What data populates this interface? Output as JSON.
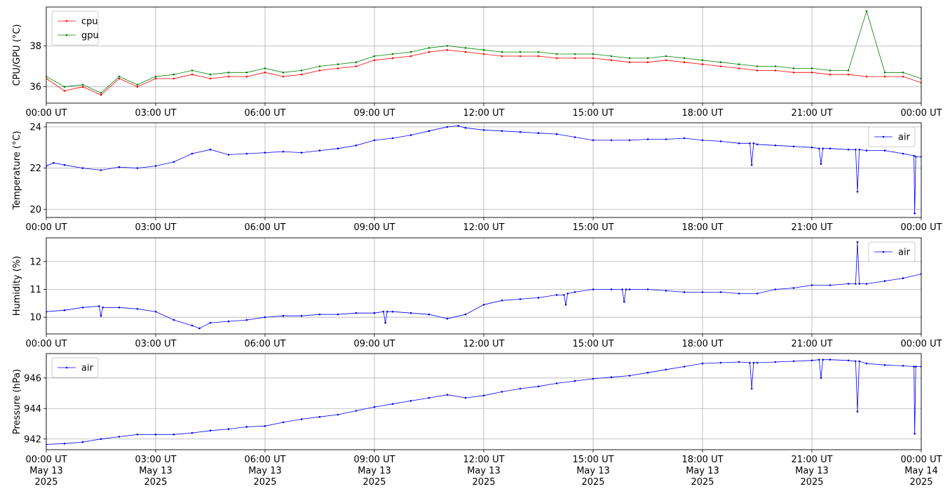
{
  "chart_data": [
    {
      "type": "line",
      "ylabel": "CPU/GPU (°C)",
      "ylim": [
        35.2,
        39.9
      ],
      "yticks": [
        36,
        38
      ],
      "xlim": [
        0,
        24
      ],
      "xtick_labels": [
        "00:00 UT",
        "03:00 UT",
        "06:00 UT",
        "09:00 UT",
        "12:00 UT",
        "15:00 UT",
        "18:00 UT",
        "21:00 UT",
        "00:00 UT"
      ],
      "grid": true,
      "legend": "upper-left",
      "series": [
        {
          "name": "cpu",
          "color": "#ff0000",
          "x": [
            0,
            0.5,
            1,
            1.5,
            2,
            2.5,
            3,
            3.5,
            4,
            4.5,
            5,
            5.5,
            6,
            6.5,
            7,
            7.5,
            8,
            8.5,
            9,
            9.5,
            10,
            10.5,
            11,
            11.5,
            12,
            12.5,
            13,
            13.5,
            14,
            14.5,
            15,
            15.5,
            16,
            16.5,
            17,
            17.5,
            18,
            18.5,
            19,
            19.5,
            20,
            20.5,
            21,
            21.5,
            22,
            22.5,
            23,
            23.5,
            24
          ],
          "y": [
            36.4,
            35.8,
            36.0,
            35.6,
            36.4,
            36.0,
            36.4,
            36.4,
            36.6,
            36.4,
            36.5,
            36.5,
            36.7,
            36.5,
            36.6,
            36.8,
            36.9,
            37.0,
            37.3,
            37.4,
            37.5,
            37.7,
            37.8,
            37.7,
            37.6,
            37.5,
            37.5,
            37.5,
            37.4,
            37.4,
            37.4,
            37.3,
            37.2,
            37.2,
            37.3,
            37.2,
            37.1,
            37.0,
            36.9,
            36.8,
            36.8,
            36.7,
            36.7,
            36.6,
            36.6,
            36.5,
            36.5,
            36.5,
            36.2
          ]
        },
        {
          "name": "gpu",
          "color": "#008000",
          "x": [
            0,
            0.5,
            1,
            1.5,
            2,
            2.5,
            3,
            3.5,
            4,
            4.5,
            5,
            5.5,
            6,
            6.5,
            7,
            7.5,
            8,
            8.5,
            9,
            9.5,
            10,
            10.5,
            11,
            11.5,
            12,
            12.5,
            13,
            13.5,
            14,
            14.5,
            15,
            15.5,
            16,
            16.5,
            17,
            17.5,
            18,
            18.5,
            19,
            19.5,
            20,
            20.5,
            21,
            21.5,
            22,
            22.5,
            23,
            23.5,
            24
          ],
          "y": [
            36.5,
            36.0,
            36.1,
            35.7,
            36.5,
            36.1,
            36.5,
            36.6,
            36.8,
            36.6,
            36.7,
            36.7,
            36.9,
            36.7,
            36.8,
            37.0,
            37.1,
            37.2,
            37.5,
            37.6,
            37.7,
            37.9,
            38.0,
            37.9,
            37.8,
            37.7,
            37.7,
            37.7,
            37.6,
            37.6,
            37.6,
            37.5,
            37.4,
            37.4,
            37.5,
            37.4,
            37.3,
            37.2,
            37.1,
            37.0,
            37.0,
            36.9,
            36.9,
            36.8,
            36.8,
            39.7,
            36.7,
            36.7,
            36.4
          ]
        }
      ]
    },
    {
      "type": "line",
      "ylabel": "Temperature (°C)",
      "ylim": [
        19.6,
        24.2
      ],
      "yticks": [
        20,
        22,
        24
      ],
      "xlim": [
        0,
        24
      ],
      "xtick_labels": [
        "00:00 UT",
        "03:00 UT",
        "06:00 UT",
        "09:00 UT",
        "12:00 UT",
        "15:00 UT",
        "18:00 UT",
        "21:00 UT",
        "00:00 UT"
      ],
      "grid": true,
      "legend": "upper-right",
      "series": [
        {
          "name": "air",
          "color": "#0000ff",
          "x": [
            0,
            0.2,
            0.5,
            1,
            1.5,
            2,
            2.5,
            3,
            3.5,
            4,
            4.5,
            5,
            5.5,
            6,
            6.5,
            7,
            7.5,
            8,
            8.5,
            9,
            9.5,
            10,
            10.5,
            11,
            11.3,
            11.5,
            12,
            12.5,
            13,
            13.5,
            14,
            14.5,
            15,
            15.5,
            16,
            16.5,
            17,
            17.5,
            18,
            18.5,
            19,
            19.3,
            19.35,
            19.4,
            19.5,
            20,
            20.5,
            21,
            21.2,
            21.25,
            21.3,
            21.5,
            22,
            22.2,
            22.25,
            22.3,
            22.5,
            23,
            23.5,
            23.8,
            23.82,
            23.85,
            24
          ],
          "y": [
            22.1,
            22.25,
            22.15,
            22.0,
            21.9,
            22.05,
            22.0,
            22.1,
            22.3,
            22.7,
            22.9,
            22.65,
            22.7,
            22.75,
            22.8,
            22.75,
            22.85,
            22.95,
            23.1,
            23.35,
            23.45,
            23.6,
            23.8,
            24.0,
            24.05,
            23.95,
            23.85,
            23.8,
            23.75,
            23.7,
            23.65,
            23.5,
            23.35,
            23.35,
            23.35,
            23.4,
            23.4,
            23.45,
            23.35,
            23.3,
            23.2,
            23.2,
            22.15,
            23.2,
            23.15,
            23.1,
            23.05,
            23.0,
            22.95,
            22.2,
            22.95,
            22.95,
            22.9,
            22.9,
            20.85,
            22.9,
            22.85,
            22.85,
            22.7,
            22.6,
            19.8,
            22.55,
            22.55
          ]
        }
      ]
    },
    {
      "type": "line",
      "ylabel": "Humidity (%)",
      "ylim": [
        9.4,
        12.85
      ],
      "yticks": [
        10,
        11,
        12
      ],
      "xlim": [
        0,
        24
      ],
      "xtick_labels": [
        "00:00 UT",
        "03:00 UT",
        "06:00 UT",
        "09:00 UT",
        "12:00 UT",
        "15:00 UT",
        "18:00 UT",
        "21:00 UT",
        "00:00 UT"
      ],
      "grid": true,
      "legend": "upper-right",
      "series": [
        {
          "name": "air",
          "color": "#0000ff",
          "x": [
            0,
            0.5,
            1,
            1.45,
            1.5,
            1.55,
            2,
            2.5,
            3,
            3.5,
            4,
            4.2,
            4.5,
            5,
            5.5,
            6,
            6.5,
            7,
            7.5,
            8,
            8.5,
            9,
            9.25,
            9.3,
            9.35,
            9.5,
            10,
            10.5,
            11,
            11.5,
            12,
            12.5,
            13,
            13.5,
            14,
            14.2,
            14.25,
            14.3,
            14.5,
            15,
            15.5,
            15.8,
            15.85,
            15.9,
            16,
            16.5,
            17,
            17.5,
            18,
            18.5,
            19,
            19.5,
            20,
            20.5,
            21,
            21.5,
            22,
            22.2,
            22.25,
            22.3,
            22.5,
            23,
            23.5,
            24
          ],
          "y": [
            10.2,
            10.25,
            10.35,
            10.4,
            10.05,
            10.35,
            10.35,
            10.3,
            10.2,
            9.9,
            9.7,
            9.6,
            9.8,
            9.85,
            9.9,
            10.0,
            10.05,
            10.05,
            10.1,
            10.1,
            10.15,
            10.15,
            10.2,
            9.8,
            10.2,
            10.2,
            10.15,
            10.1,
            9.95,
            10.1,
            10.45,
            10.6,
            10.65,
            10.7,
            10.8,
            10.8,
            10.45,
            10.85,
            10.9,
            11.0,
            11.0,
            11.0,
            10.55,
            11.0,
            11.0,
            11.0,
            10.95,
            10.9,
            10.9,
            10.9,
            10.85,
            10.85,
            11.0,
            11.05,
            11.15,
            11.15,
            11.2,
            11.2,
            12.7,
            11.2,
            11.2,
            11.3,
            11.4,
            11.55
          ]
        }
      ]
    },
    {
      "type": "line",
      "ylabel": "Pressure (hPa)",
      "ylim": [
        941.3,
        947.6
      ],
      "yticks": [
        942,
        944,
        946
      ],
      "xlim": [
        0,
        24
      ],
      "xtick_labels": [
        "00:00 UT\nMay 13\n2025",
        "03:00 UT\nMay 13\n2025",
        "06:00 UT\nMay 13\n2025",
        "09:00 UT\nMay 13\n2025",
        "12:00 UT\nMay 13\n2025",
        "15:00 UT\nMay 13\n2025",
        "18:00 UT\nMay 13\n2025",
        "21:00 UT\nMay 13\n2025",
        "00:00 UT\nMay 14\n2025"
      ],
      "grid": true,
      "legend": "upper-left",
      "series": [
        {
          "name": "air",
          "color": "#0000ff",
          "x": [
            0,
            0.5,
            1,
            1.5,
            2,
            2.5,
            3,
            3.5,
            4,
            4.5,
            5,
            5.5,
            6,
            6.5,
            7,
            7.5,
            8,
            8.5,
            9,
            9.5,
            10,
            10.5,
            11,
            11.5,
            12,
            12.5,
            13,
            13.5,
            14,
            14.5,
            15,
            15.5,
            16,
            16.5,
            17,
            17.5,
            18,
            18.5,
            19,
            19.3,
            19.35,
            19.4,
            19.5,
            20,
            20.5,
            21,
            21.2,
            21.25,
            21.3,
            21.5,
            22,
            22.2,
            22.25,
            22.3,
            22.5,
            23,
            23.5,
            23.8,
            23.82,
            23.85,
            24
          ],
          "y": [
            941.65,
            941.7,
            941.8,
            942.0,
            942.15,
            942.3,
            942.3,
            942.3,
            942.4,
            942.55,
            942.65,
            942.8,
            942.85,
            943.1,
            943.3,
            943.45,
            943.6,
            943.85,
            944.1,
            944.3,
            944.5,
            944.7,
            944.9,
            944.7,
            944.85,
            945.1,
            945.3,
            945.45,
            945.65,
            945.8,
            945.95,
            946.05,
            946.15,
            946.35,
            946.55,
            946.75,
            946.95,
            947.0,
            947.05,
            947.0,
            945.3,
            947.0,
            947.0,
            947.05,
            947.1,
            947.15,
            947.2,
            946.0,
            947.2,
            947.2,
            947.15,
            947.1,
            943.8,
            947.1,
            946.95,
            946.85,
            946.8,
            946.75,
            942.35,
            946.75,
            946.75
          ]
        }
      ]
    }
  ]
}
